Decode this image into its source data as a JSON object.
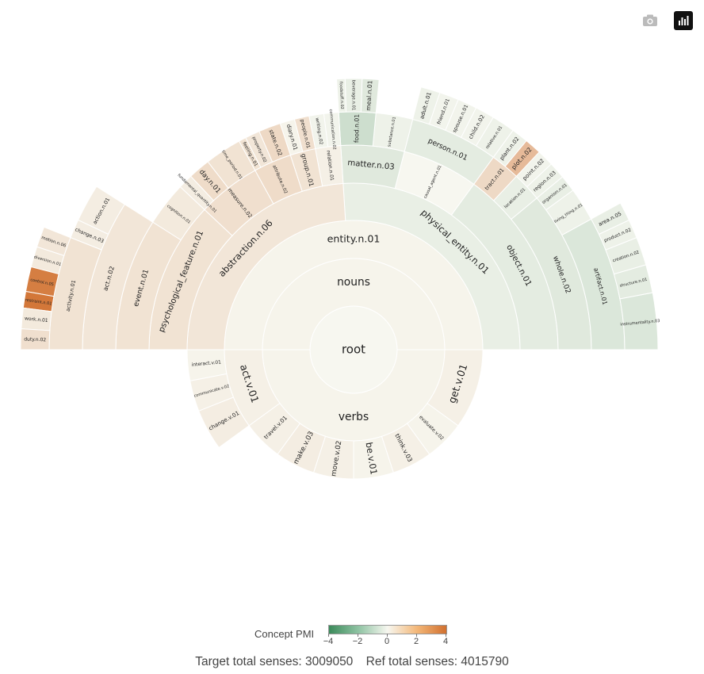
{
  "toolbar": {
    "camera_label": "Download plot as a png",
    "modebar_label": "Produced with Plotly"
  },
  "legend": {
    "title": "Concept PMI",
    "ticks": [
      "−4",
      "−2",
      "0",
      "2",
      "4"
    ],
    "tick_values": [
      -4,
      -2,
      0,
      2,
      4
    ],
    "colors": {
      "low": "#3b8a5a",
      "mid": "#f7f7f0",
      "high": "#d1702f"
    }
  },
  "footer": {
    "target": "Target total senses: 3009050",
    "ref": "Ref total senses: 4015790"
  },
  "chart_data": {
    "type": "sunburst",
    "color_metric": "Concept PMI",
    "color_range": [
      -4,
      4
    ],
    "root": {
      "name": "root",
      "value": 100,
      "pmi": 0,
      "children": [
        {
          "name": "nouns",
          "value": 50,
          "pmi": 0.1,
          "children": [
            {
              "name": "entity.n.01",
              "value": 50,
              "pmi": 0.1,
              "children": [
                {
                  "name": "physical_entity.n.01",
                  "value": 26,
                  "pmi": -0.3,
                  "children": [
                    {
                      "name": "object.n.01",
                      "value": 15,
                      "pmi": -0.4,
                      "children": [
                        {
                          "name": "whole.n.02",
                          "value": 11,
                          "pmi": -0.5,
                          "children": [
                            {
                              "name": "artifact.n.01",
                              "value": 8,
                              "pmi": -0.6,
                              "children": [
                                {
                                  "name": "instrumentality.n.03",
                                  "value": 3,
                                  "pmi": -0.6
                                },
                                {
                                  "name": "structure.n.01",
                                  "value": 1.5,
                                  "pmi": -0.4
                                },
                                {
                                  "name": "creation.n.02",
                                  "value": 1.5,
                                  "pmi": -0.3
                                },
                                {
                                  "name": "product.n.02",
                                  "value": 1,
                                  "pmi": -0.2
                                },
                                {
                                  "name": "area.n.05",
                                  "value": 1,
                                  "pmi": -0.3
                                }
                              ]
                            },
                            {
                              "name": "living_thing.n.01",
                              "value": 2,
                              "pmi": -0.2
                            },
                            {
                              "name": "organism.n.01",
                              "value": 1,
                              "pmi": -0.3
                            }
                          ]
                        },
                        {
                          "name": "location.n.01",
                          "value": 2,
                          "pmi": -0.3,
                          "children": [
                            {
                              "name": "region.n.03",
                              "value": 1,
                              "pmi": -0.2
                            },
                            {
                              "name": "point.n.02",
                              "value": 1,
                              "pmi": -0.1
                            }
                          ]
                        },
                        {
                          "name": "tract.n.01",
                          "value": 2,
                          "pmi": 0.9,
                          "children": [
                            {
                              "name": "plot.n.02",
                              "value": 1,
                              "pmi": 1.8
                            },
                            {
                              "name": "plant.n.02",
                              "value": 1,
                              "pmi": -0.2
                            }
                          ]
                        }
                      ]
                    },
                    {
                      "name": "causal_agent.n.01",
                      "value": 6,
                      "pmi": 0.0,
                      "children": [
                        {
                          "name": "person.n.01",
                          "value": 6,
                          "pmi": -0.4,
                          "children": [
                            {
                              "name": "relative.n.01",
                              "value": 1.2,
                              "pmi": -0.2
                            },
                            {
                              "name": "child.n.02",
                              "value": 1.0,
                              "pmi": -0.1
                            },
                            {
                              "name": "spouse.n.01",
                              "value": 1.0,
                              "pmi": -0.1
                            },
                            {
                              "name": "friend.n.01",
                              "value": 1.0,
                              "pmi": -0.1
                            },
                            {
                              "name": "adult.n.01",
                              "value": 1.0,
                              "pmi": -0.2
                            }
                          ]
                        }
                      ]
                    },
                    {
                      "name": "matter.n.03",
                      "value": 5,
                      "pmi": -0.5,
                      "children": [
                        {
                          "name": "substance.n.01",
                          "value": 2.5,
                          "pmi": -0.2
                        },
                        {
                          "name": "food.n.01",
                          "value": 2.5,
                          "pmi": -0.9,
                          "children": [
                            {
                              "name": "meal.n.01",
                              "value": 1,
                              "pmi": -0.5
                            },
                            {
                              "name": "beverage.n.01",
                              "value": 1,
                              "pmi": -0.3
                            },
                            {
                              "name": "foodstuff.n.02",
                              "value": 0.5,
                              "pmi": -0.2
                            }
                          ]
                        }
                      ]
                    }
                  ]
                },
                {
                  "name": "abstraction.n.06",
                  "value": 24,
                  "pmi": 0.5,
                  "children": [
                    {
                      "name": "relation.n.01",
                      "value": 2,
                      "pmi": 0.2,
                      "children": [
                        {
                          "name": "communication.n.02",
                          "value": 1,
                          "pmi": -0.1
                        },
                        {
                          "name": "writing.n.02",
                          "value": 1,
                          "pmi": -0.1
                        }
                      ]
                    },
                    {
                      "name": "group.n.01",
                      "value": 2,
                      "pmi": 0.6,
                      "children": [
                        {
                          "name": "people.n.01",
                          "value": 1,
                          "pmi": 0.7
                        },
                        {
                          "name": "diary.n.01",
                          "value": 1,
                          "pmi": 0.1
                        }
                      ]
                    },
                    {
                      "name": "attribute.n.02",
                      "value": 3,
                      "pmi": 0.8,
                      "children": [
                        {
                          "name": "state.n.02",
                          "value": 1.5,
                          "pmi": 0.9
                        },
                        {
                          "name": "property.n.02",
                          "value": 1,
                          "pmi": 0.5
                        },
                        {
                          "name": "feeling.n.01",
                          "value": 0.5,
                          "pmi": 0.6
                        }
                      ]
                    },
                    {
                      "name": "measure.n.02",
                      "value": 5,
                      "pmi": 0.7,
                      "children": [
                        {
                          "name": "time_period.n.01",
                          "value": 2.5,
                          "pmi": 0.6
                        },
                        {
                          "name": "day.n.01",
                          "value": 1.5,
                          "pmi": 0.8
                        },
                        {
                          "name": "fundamental_quantity.n.01",
                          "value": 1,
                          "pmi": 0.3
                        }
                      ]
                    },
                    {
                      "name": "psychological_feature.n.01",
                      "value": 12,
                      "pmi": 0.6,
                      "children": [
                        {
                          "name": "cognition.n.01",
                          "value": 3,
                          "pmi": 0.4
                        },
                        {
                          "name": "event.n.01",
                          "value": 9,
                          "pmi": 0.6,
                          "children": [
                            {
                              "name": "act.n.02",
                              "value": 9,
                              "pmi": 0.5,
                              "children": [
                                {
                                  "name": "action.n.01",
                                  "value": 2,
                                  "pmi": 0.3
                                },
                                {
                                  "name": "change.n.03",
                                  "value": 1,
                                  "pmi": 0.3
                                },
                                {
                                  "name": "activity.n.01",
                                  "value": 6,
                                  "pmi": 0.6,
                                  "children": [
                                    {
                                      "name": "motion.n.06",
                                      "value": 1,
                                      "pmi": 0.5
                                    },
                                    {
                                      "name": "diversion.n.01",
                                      "value": 1,
                                      "pmi": 0.4
                                    },
                                    {
                                      "name": "control.n.05",
                                      "value": 1.2,
                                      "pmi": 3.6
                                    },
                                    {
                                      "name": "restraint.n.01",
                                      "value": 0.8,
                                      "pmi": 3.8
                                    },
                                    {
                                      "name": "work.n.01",
                                      "value": 1,
                                      "pmi": 0.4
                                    },
                                    {
                                      "name": "duty.n.02",
                                      "value": 1,
                                      "pmi": 0.7
                                    }
                                  ]
                                }
                              ]
                            }
                          ]
                        }
                      ]
                    }
                  ]
                }
              ]
            }
          ]
        },
        {
          "name": "verbs",
          "value": 50,
          "pmi": 0.1,
          "children": [
            {
              "name": "act.v.01",
              "value": 10,
              "pmi": 0.2,
              "children": [
                {
                  "name": "interact.v.01",
                  "value": 3,
                  "pmi": 0.1
                },
                {
                  "name": "communicate.v.02",
                  "value": 3,
                  "pmi": 0.2
                },
                {
                  "name": "change.v.01",
                  "value": 4,
                  "pmi": 0.3
                }
              ]
            },
            {
              "name": "travel.v.01",
              "value": 5,
              "pmi": 0.2
            },
            {
              "name": "make.v.03",
              "value": 5,
              "pmi": 0.3
            },
            {
              "name": "move.v.02",
              "value": 5,
              "pmi": 0.2
            },
            {
              "name": "be.v.01",
              "value": 5,
              "pmi": 0.1
            },
            {
              "name": "think.v.03",
              "value": 5,
              "pmi": 0.2
            },
            {
              "name": "evaluate.v.02",
              "value": 5,
              "pmi": 0.1
            },
            {
              "name": "get.v.01",
              "value": 10,
              "pmi": 0.2
            }
          ]
        }
      ]
    }
  }
}
